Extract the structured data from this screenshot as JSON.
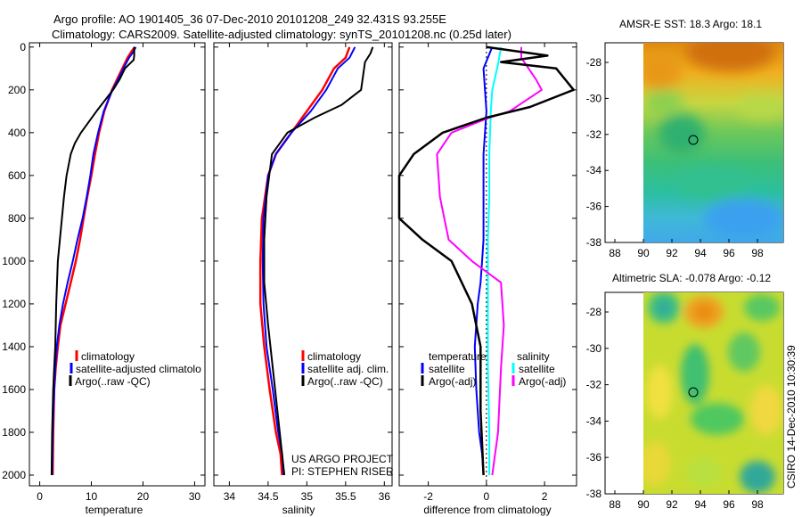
{
  "header": {
    "line1": "Argo profile: AO 1901405_36 07-Dec-2010 20101208_249 32.431S 93.255E",
    "line2": "Climatology: CARS2009. Satellite-adjusted climatology: synTS_20101208.nc (0.25d later)"
  },
  "credit": {
    "line1": "US ARGO PROJECT",
    "line2": "PI: STEPHEN RISER"
  },
  "timestamp": "CSIRO 14-Dec-2010 10:30:39",
  "colors": {
    "climatology": "#ff0000",
    "satellite": "#0000ff",
    "argo": "#000000",
    "sal_satellite": "#00ffff",
    "sal_argo": "#ff00ff"
  },
  "chart_data": [
    {
      "type": "line",
      "id": "temperature",
      "xlabel": "temperature",
      "xlim": [
        -2,
        32
      ],
      "ylim": [
        2050,
        -20
      ],
      "xticks": [
        0,
        10,
        20,
        30
      ],
      "yticks": [
        0,
        200,
        400,
        600,
        800,
        1000,
        1200,
        1400,
        1600,
        1800,
        2000
      ],
      "legend": [
        "climatology",
        "satellite-adjusted climatolo",
        "Argo(..raw -QC)"
      ],
      "series": [
        {
          "name": "climatology",
          "color": "#ff0000",
          "width": 2.5,
          "x": [
            18.4,
            17.8,
            17,
            16,
            15,
            14,
            12.5,
            11.5,
            10.7,
            10,
            9.2,
            8.5,
            7.8,
            7,
            6,
            5,
            4,
            3.5,
            3.1,
            2.8,
            2.6,
            2.5
          ],
          "y": [
            0,
            20,
            50,
            100,
            150,
            200,
            300,
            400,
            500,
            600,
            700,
            800,
            900,
            1000,
            1100,
            1200,
            1300,
            1400,
            1500,
            1600,
            1800,
            2000
          ]
        },
        {
          "name": "satellite-adjusted",
          "color": "#0000ff",
          "width": 2,
          "x": [
            18.6,
            18.2,
            17.3,
            16.2,
            15.2,
            14.1,
            12.4,
            11.3,
            10.4,
            9.8,
            9.1,
            8.3,
            7.3,
            6.4,
            5.4,
            4.5,
            3.8,
            3.3,
            3,
            2.8,
            2.5,
            2.4
          ],
          "y": [
            0,
            20,
            50,
            100,
            150,
            200,
            300,
            400,
            500,
            600,
            700,
            800,
            900,
            1000,
            1100,
            1200,
            1300,
            1400,
            1500,
            1600,
            1800,
            2000
          ]
        },
        {
          "name": "Argo",
          "color": "#000000",
          "width": 2,
          "x": [
            18.3,
            18.3,
            18.2,
            16.5,
            15.5,
            14.2,
            11,
            8,
            6.8,
            6,
            5.2,
            4.7,
            4.3,
            3.9,
            3.5,
            3.2,
            3,
            2.8,
            2.6,
            2.5,
            2.4,
            2.3
          ],
          "y": [
            0,
            40,
            60,
            100,
            150,
            200,
            300,
            400,
            450,
            500,
            600,
            700,
            800,
            900,
            1000,
            1200,
            1400,
            1500,
            1600,
            1700,
            1800,
            2000
          ]
        }
      ]
    },
    {
      "type": "line",
      "id": "salinity",
      "xlabel": "salinity",
      "xlim": [
        33.8,
        36.1
      ],
      "ylim": [
        2050,
        -20
      ],
      "xticks": [
        34,
        34.5,
        35,
        35.5,
        36
      ],
      "legend": [
        "climatology",
        "satellite adj. clim.",
        "Argo(..raw -QC)"
      ],
      "series": [
        {
          "name": "climatology",
          "color": "#ff0000",
          "width": 2.5,
          "x": [
            35.55,
            35.5,
            35.35,
            35.2,
            35,
            34.8,
            34.6,
            34.5,
            34.42,
            34.4,
            34.4,
            34.45,
            34.52,
            34.6,
            34.66,
            34.68
          ],
          "y": [
            0,
            50,
            100,
            200,
            300,
            400,
            500,
            600,
            800,
            1000,
            1200,
            1400,
            1600,
            1800,
            1900,
            2000
          ]
        },
        {
          "name": "satellite adj.",
          "color": "#0000ff",
          "width": 2,
          "x": [
            35.62,
            35.55,
            35.4,
            35.25,
            35.05,
            34.8,
            34.6,
            34.5,
            34.44,
            34.43,
            34.44,
            34.48,
            34.56,
            34.63,
            34.68,
            34.7
          ],
          "y": [
            0,
            50,
            100,
            200,
            300,
            400,
            500,
            600,
            800,
            1000,
            1200,
            1400,
            1600,
            1800,
            1900,
            2000
          ]
        },
        {
          "name": "Argo",
          "color": "#000000",
          "width": 2,
          "x": [
            35.85,
            35.82,
            35.75,
            35.7,
            35.45,
            35.1,
            34.75,
            34.55,
            34.48,
            34.45,
            34.45,
            34.5,
            34.56,
            34.62,
            34.68,
            34.71
          ],
          "y": [
            0,
            30,
            70,
            200,
            270,
            330,
            400,
            500,
            700,
            900,
            1100,
            1300,
            1500,
            1700,
            1900,
            2000
          ]
        }
      ]
    },
    {
      "type": "line",
      "id": "difference",
      "xlabel": "difference from climatology",
      "xlim": [
        -3,
        3.1
      ],
      "ylim": [
        2050,
        -20
      ],
      "xticks": [
        -2,
        0,
        2
      ],
      "legend": {
        "left_title": "temperature",
        "right_title": "salinity",
        "left": [
          "satellite",
          "Argo(-adj)"
        ],
        "right": [
          "satellite",
          "Argo(-adj)"
        ]
      },
      "series": [
        {
          "name": "temperature satellite",
          "color": "#0000ff",
          "width": 2,
          "x": [
            0.2,
            -0.1,
            0,
            -0.1,
            -0.1,
            -0.1,
            -0.1,
            -0.15,
            -0.2,
            -0.3,
            -0.4,
            -0.35,
            -0.25,
            -0.15,
            -0.1
          ],
          "y": [
            0,
            100,
            300,
            500,
            700,
            800,
            900,
            1000,
            1100,
            1200,
            1400,
            1600,
            1800,
            1900,
            2000
          ]
        },
        {
          "name": "salinity satellite",
          "color": "#00ffff",
          "width": 2,
          "x": [
            0.5,
            0.4,
            0.2,
            0.15,
            0.1,
            0.1,
            0.05,
            0.05,
            0.05,
            0.05,
            0.1,
            0.1
          ],
          "y": [
            0,
            80,
            200,
            300,
            500,
            700,
            900,
            1100,
            1300,
            1500,
            1800,
            2000
          ]
        },
        {
          "name": "salinity Argo(-adj)",
          "color": "#ff00ff",
          "width": 2,
          "x": [
            1.2,
            1.2,
            1.7,
            1.9,
            0.8,
            0.1,
            -1.2,
            -1.7,
            -1.6,
            -1.3,
            -0.5,
            0.5,
            0.6,
            0.5,
            0.4,
            0.2
          ],
          "y": [
            0,
            50,
            150,
            200,
            300,
            330,
            400,
            500,
            700,
            900,
            1000,
            1100,
            1300,
            1500,
            1800,
            2000
          ]
        },
        {
          "name": "temperature Argo(-adj)",
          "color": "#000000",
          "width": 2.5,
          "x": [
            0,
            2.1,
            0.5,
            2.4,
            3.0,
            1.5,
            0,
            -1.5,
            -2.5,
            -3.0,
            -3.0,
            -2.2,
            -1.2,
            -0.5,
            -0.2,
            -0.2,
            -0.1
          ],
          "y": [
            0,
            40,
            70,
            100,
            200,
            280,
            330,
            400,
            500,
            600,
            800,
            900,
            1000,
            1200,
            1400,
            1700,
            2000
          ]
        }
      ]
    }
  ],
  "maps": [
    {
      "title": "AMSR-E SST: 18.3 Argo: 18.1",
      "xticks": [
        "88",
        "90",
        "92",
        "94",
        "96",
        "98"
      ],
      "yticks": [
        "-28",
        "-30",
        "-32",
        "-34",
        "-36",
        "-38"
      ],
      "field": "sst"
    },
    {
      "title": "Altimetric SLA: -0.078 Argo: -0.12",
      "xticks": [
        "88",
        "90",
        "92",
        "94",
        "96",
        "98"
      ],
      "yticks": [
        "-28",
        "-30",
        "-32",
        "-34",
        "-36",
        "-38"
      ],
      "field": "sla"
    }
  ]
}
